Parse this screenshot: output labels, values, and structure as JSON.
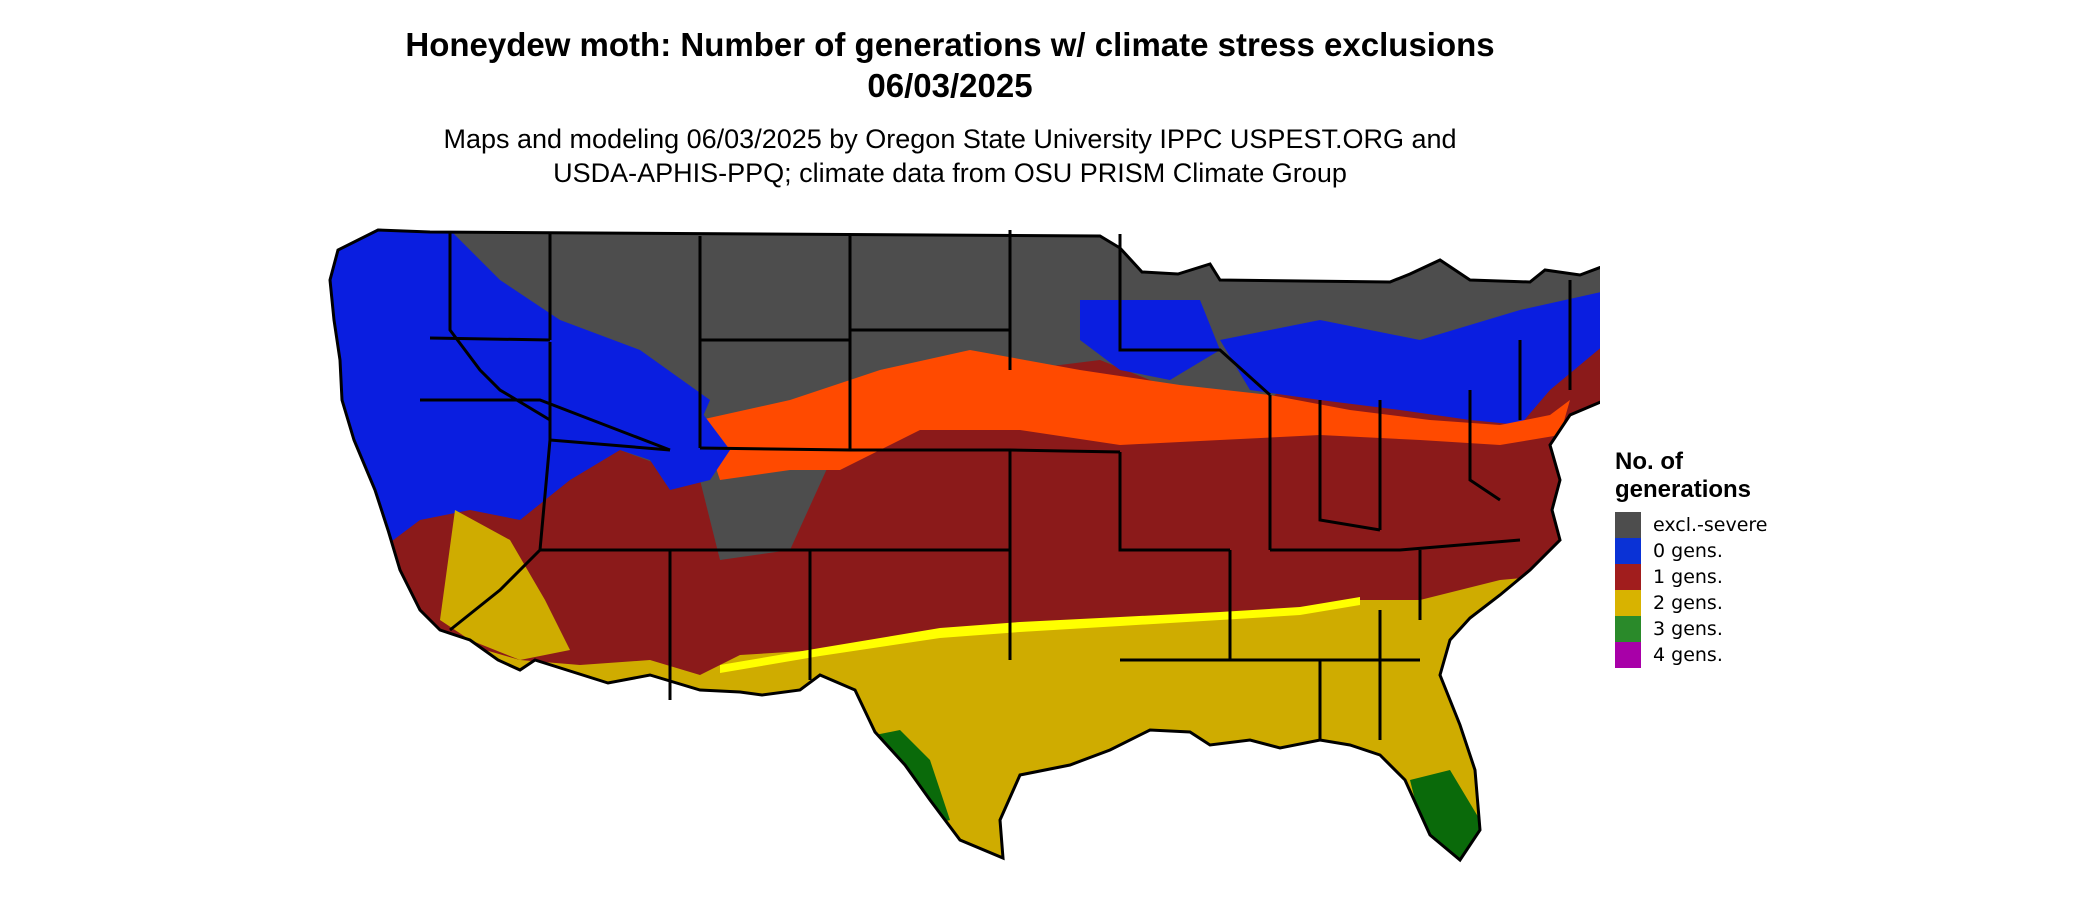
{
  "header": {
    "title_line1": "Honeydew moth: Number of generations w/ climate stress exclusions",
    "title_line2": "06/03/2025",
    "subtitle_line1": "Maps and modeling 06/03/2025 by Oregon State University IPPC USPEST.ORG and",
    "subtitle_line2": "USDA-APHIS-PPQ; climate data from OSU PRISM Climate Group"
  },
  "legend": {
    "title_line1": "No. of",
    "title_line2": "generations",
    "items": [
      {
        "label": "excl.-severe",
        "color": "#4d4d4d"
      },
      {
        "label": "0 gens.",
        "color": "#0a32d6"
      },
      {
        "label": "1 gens.",
        "color": "#a11d1d"
      },
      {
        "label": "2 gens.",
        "color": "#d8b300"
      },
      {
        "label": "3 gens.",
        "color": "#2a8a2a"
      },
      {
        "label": "4 gens.",
        "color": "#a800a8"
      }
    ]
  },
  "map_colors": {
    "excluded": "#4d4d4d",
    "zero": "#0a1ee0",
    "zero_partial": "#ff4a00",
    "one": "#8b1a1a",
    "two": "#cfac00",
    "two_edge": "#ffff00",
    "three": "#0a6a0a",
    "four": "#a800a8",
    "border": "#000000"
  }
}
